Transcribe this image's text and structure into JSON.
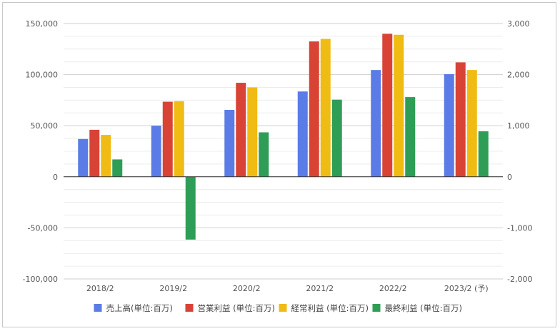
{
  "chart_data": {
    "type": "bar",
    "categories": [
      "2018/2",
      "2019/2",
      "2020/2",
      "2021/2",
      "2022/2",
      "2023/2 (予)"
    ],
    "series": [
      {
        "name": "売上高(単位:百万)",
        "axis": "left",
        "color": "#5b7be6",
        "values": [
          37000,
          50000,
          65500,
          83500,
          104500,
          100500
        ]
      },
      {
        "name": "営業利益 (単位:百万)",
        "axis": "right",
        "color": "#d94336",
        "values": [
          920,
          1470,
          1840,
          2650,
          2800,
          2240
        ]
      },
      {
        "name": "経常利益 (単位:百万)",
        "axis": "right",
        "color": "#f0bb12",
        "values": [
          820,
          1480,
          1750,
          2700,
          2780,
          2090
        ]
      },
      {
        "name": "最終利益 (単位:百万)",
        "axis": "right",
        "color": "#2e9e56",
        "values": [
          340,
          -1230,
          870,
          1510,
          1560,
          890
        ]
      }
    ],
    "y_left": {
      "min": -100000,
      "max": 150000,
      "ticks": [
        "150,000",
        "100,000",
        "50,000",
        "0",
        "-50,000",
        "-100,000"
      ],
      "tick_values": [
        150000,
        100000,
        50000,
        0,
        -50000,
        -100000
      ]
    },
    "y_right": {
      "min": -2000,
      "max": 3000,
      "ticks": [
        "3,000",
        "2,000",
        "1,000",
        "0",
        "-1,000",
        "-2,000"
      ],
      "tick_values": [
        3000,
        2000,
        1000,
        0,
        -1000,
        -2000
      ]
    },
    "grid": true,
    "legend_position": "bottom"
  }
}
